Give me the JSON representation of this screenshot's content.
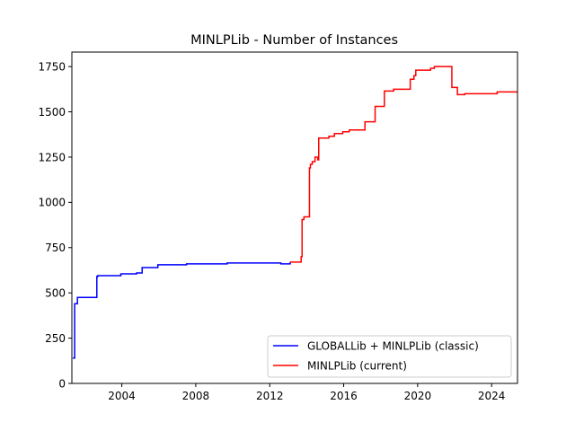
{
  "chart_data": {
    "type": "line",
    "step": true,
    "title": "MINLPLib - Number of Instances",
    "xlabel": "",
    "ylabel": "",
    "xlim": [
      2001.3,
      2025.4
    ],
    "ylim": [
      0,
      1830
    ],
    "x_ticks": [
      2004,
      2008,
      2012,
      2016,
      2020,
      2024
    ],
    "x_tick_labels": [
      "2004",
      "2008",
      "2012",
      "2016",
      "2020",
      "2024"
    ],
    "y_ticks": [
      0,
      250,
      500,
      750,
      1000,
      1250,
      1500,
      1750
    ],
    "y_tick_labels": [
      "0",
      "250",
      "500",
      "750",
      "1000",
      "1250",
      "1500",
      "1750"
    ],
    "grid": false,
    "legend_position": "lower-right",
    "series": [
      {
        "name": "GLOBALLib + MINLPLib (classic)",
        "color": "#0000ff",
        "points": [
          [
            2001.35,
            140
          ],
          [
            2001.45,
            440
          ],
          [
            2001.6,
            475
          ],
          [
            2002.65,
            590
          ],
          [
            2002.7,
            595
          ],
          [
            2003.95,
            605
          ],
          [
            2004.8,
            610
          ],
          [
            2005.1,
            640
          ],
          [
            2005.95,
            655
          ],
          [
            2007.5,
            660
          ],
          [
            2009.7,
            665
          ],
          [
            2012.6,
            660
          ],
          [
            2013.1,
            665
          ]
        ],
        "end_x": 2013.15
      },
      {
        "name": "MINLPLib (current)",
        "color": "#ff0000",
        "points": [
          [
            2013.1,
            670
          ],
          [
            2013.7,
            700
          ],
          [
            2013.75,
            905
          ],
          [
            2013.85,
            920
          ],
          [
            2014.15,
            1190
          ],
          [
            2014.2,
            1210
          ],
          [
            2014.3,
            1225
          ],
          [
            2014.45,
            1250
          ],
          [
            2014.6,
            1235
          ],
          [
            2014.65,
            1355
          ],
          [
            2015.2,
            1365
          ],
          [
            2015.5,
            1380
          ],
          [
            2015.95,
            1390
          ],
          [
            2016.3,
            1400
          ],
          [
            2017.15,
            1445
          ],
          [
            2017.7,
            1530
          ],
          [
            2018.2,
            1615
          ],
          [
            2018.7,
            1625
          ],
          [
            2019.6,
            1680
          ],
          [
            2019.8,
            1700
          ],
          [
            2019.9,
            1730
          ],
          [
            2020.7,
            1740
          ],
          [
            2020.9,
            1750
          ],
          [
            2021.85,
            1635
          ],
          [
            2022.15,
            1595
          ],
          [
            2022.55,
            1600
          ],
          [
            2024.3,
            1610
          ]
        ],
        "end_x": 2025.4
      }
    ]
  }
}
